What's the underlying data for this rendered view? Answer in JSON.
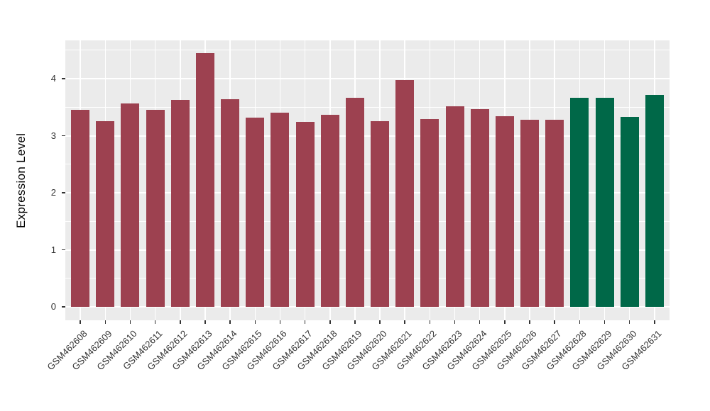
{
  "chart_data": {
    "type": "bar",
    "title": "",
    "xlabel": "",
    "ylabel": "Expression Level",
    "categories": [
      "GSM462608",
      "GSM462609",
      "GSM462610",
      "GSM462611",
      "GSM462612",
      "GSM462613",
      "GSM462614",
      "GSM462615",
      "GSM462616",
      "GSM462617",
      "GSM462618",
      "GSM462619",
      "GSM462620",
      "GSM462621",
      "GSM462622",
      "GSM462623",
      "GSM462624",
      "GSM462625",
      "GSM462626",
      "GSM462627",
      "GSM462628",
      "GSM462629",
      "GSM462630",
      "GSM462631"
    ],
    "values": [
      3.45,
      3.25,
      3.57,
      3.45,
      3.63,
      4.45,
      3.64,
      3.32,
      3.4,
      3.24,
      3.37,
      3.67,
      3.25,
      3.97,
      3.29,
      3.52,
      3.46,
      3.34,
      3.28,
      3.28,
      3.67,
      3.67,
      3.33,
      3.71
    ],
    "bar_colors": [
      "#9D4150",
      "#9D4150",
      "#9D4150",
      "#9D4150",
      "#9D4150",
      "#9D4150",
      "#9D4150",
      "#9D4150",
      "#9D4150",
      "#9D4150",
      "#9D4150",
      "#9D4150",
      "#9D4150",
      "#9D4150",
      "#9D4150",
      "#9D4150",
      "#9D4150",
      "#9D4150",
      "#9D4150",
      "#9D4150",
      "#006848",
      "#006848",
      "#006848",
      "#006848"
    ],
    "group_colors": {
      "red": "#9D4150",
      "green": "#006848"
    },
    "yticks": [
      0,
      1,
      2,
      3,
      4
    ],
    "minor_yticks": [
      0.5,
      1.5,
      2.5,
      3.5,
      4.5
    ],
    "ylim": [
      0,
      4.67
    ],
    "grid": true,
    "legend": "none",
    "panel_bg": "#EBEBEB",
    "grid_color": "#FFFFFF",
    "outer_bg": "#FFFFFF"
  }
}
